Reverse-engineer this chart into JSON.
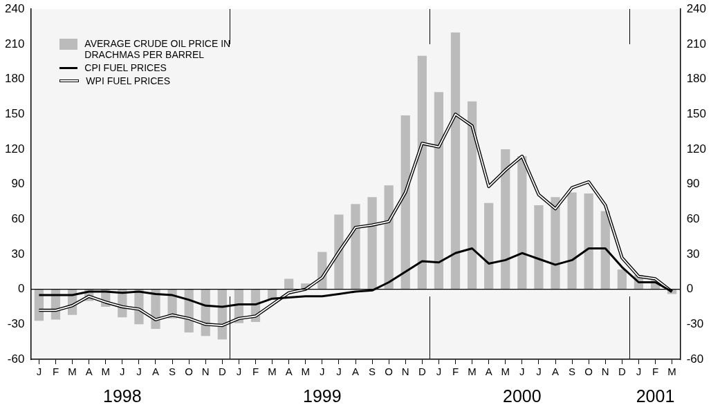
{
  "chart_data": {
    "type": "bar",
    "categories": [
      "J",
      "F",
      "M",
      "A",
      "M",
      "J",
      "J",
      "A",
      "S",
      "O",
      "N",
      "D",
      "J",
      "F",
      "M",
      "A",
      "M",
      "J",
      "J",
      "A",
      "S",
      "O",
      "N",
      "D",
      "J",
      "F",
      "M",
      "A",
      "M",
      "J",
      "J",
      "A",
      "S",
      "O",
      "N",
      "D",
      "J",
      "F",
      "M"
    ],
    "series": [
      {
        "name": "AVERAGE CRUDE OIL PRICE IN DRACHMAS PER BARREL",
        "color": "#bbbbbb",
        "values": [
          -27,
          -26,
          -22,
          -10,
          -15,
          -24,
          -30,
          -34,
          -25,
          -37,
          -40,
          -43,
          -29,
          -28,
          -9,
          9,
          5,
          32,
          64,
          73,
          79,
          89,
          149,
          200,
          169,
          220,
          161,
          74,
          120,
          114,
          72,
          79,
          83,
          82,
          67,
          17,
          12,
          8,
          -4
        ]
      },
      {
        "name": "CPI FUEL PRICES",
        "type": "line",
        "color": "#000000",
        "values": [
          -5,
          -5,
          -5,
          -2,
          -2,
          -3,
          -2,
          -4,
          -5,
          -9,
          -14,
          -15,
          -13,
          -13,
          -8,
          -7,
          -6,
          -6,
          -4,
          -2,
          -1,
          6,
          15,
          24,
          23,
          31,
          35,
          22,
          25,
          31,
          26,
          21,
          25,
          35,
          35,
          19,
          6,
          6,
          -2
        ]
      },
      {
        "name": "WPI FUEL PRICES",
        "type": "line",
        "color": "#000000",
        "values": [
          -18,
          -18,
          -14,
          -6,
          -11,
          -15,
          -17,
          -26,
          -22,
          -25,
          -30,
          -31,
          -25,
          -23,
          -13,
          -3,
          0,
          10,
          32,
          53,
          55,
          58,
          83,
          125,
          122,
          150,
          140,
          88,
          102,
          114,
          81,
          69,
          87,
          92,
          72,
          27,
          11,
          9,
          -2
        ]
      }
    ],
    "ylim": [
      -60,
      240
    ],
    "yticks": [
      -60,
      -30,
      0,
      30,
      60,
      90,
      120,
      150,
      180,
      210,
      240
    ],
    "y2lim": [
      -60,
      240
    ],
    "y2ticks": [
      -60,
      -30,
      0,
      30,
      60,
      90,
      120,
      150,
      180,
      210,
      240
    ],
    "ref_lines": [
      {
        "axis": "y",
        "value": 0
      }
    ],
    "annotations": [
      "1998",
      "1999",
      "2000",
      "2001"
    ],
    "grid": false,
    "legend": "top left",
    "marker": "none"
  }
}
